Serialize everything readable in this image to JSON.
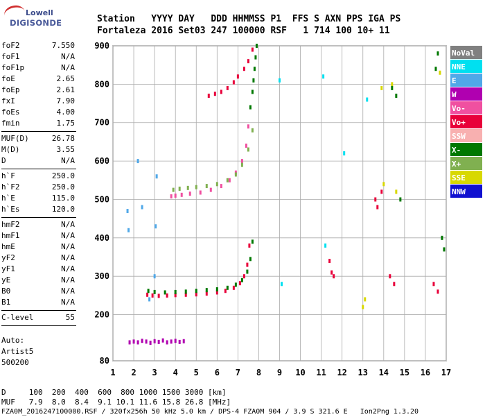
{
  "logo": {
    "brand": "Lowell",
    "product": "DIGISONDE"
  },
  "header": {
    "line1": "Station   YYYY DAY   DDD HHMMSS P1  FFS S AXN PPS IGA PS",
    "line2": "Fortaleza 2016 Set03 247 100000 RSF   1 714 100 10+ 11"
  },
  "params_groups": [
    [
      {
        "name": "foF2",
        "value": "7.550"
      },
      {
        "name": "foF1",
        "value": "N/A"
      },
      {
        "name": "foF1p",
        "value": "N/A"
      },
      {
        "name": "foE",
        "value": "2.65"
      },
      {
        "name": "foEp",
        "value": "2.61"
      },
      {
        "name": "fxI",
        "value": "7.90"
      },
      {
        "name": "foEs",
        "value": "4.00"
      },
      {
        "name": "fmin",
        "value": "1.75"
      }
    ],
    [
      {
        "name": "MUF(D)",
        "value": "26.78"
      },
      {
        "name": "M(D)",
        "value": "3.55"
      },
      {
        "name": "D",
        "value": "N/A"
      }
    ],
    [
      {
        "name": "h`F",
        "value": "250.0"
      },
      {
        "name": "h`F2",
        "value": "250.0"
      },
      {
        "name": "h`E",
        "value": "115.0"
      },
      {
        "name": "h`Es",
        "value": "120.0"
      }
    ],
    [
      {
        "name": "hmF2",
        "value": "N/A"
      },
      {
        "name": "hmF1",
        "value": "N/A"
      },
      {
        "name": "hmE",
        "value": "N/A"
      },
      {
        "name": "yF2",
        "value": "N/A"
      },
      {
        "name": "yF1",
        "value": "N/A"
      },
      {
        "name": "yE",
        "value": "N/A"
      },
      {
        "name": "B0",
        "value": "N/A"
      },
      {
        "name": "B1",
        "value": "N/A"
      }
    ],
    [
      {
        "name": "C-level",
        "value": "55"
      }
    ]
  ],
  "auto_lines": [
    "Auto:",
    "Artist5",
    "500200"
  ],
  "footer": {
    "d_row": "D     100  200  400  600  800 1000 1500 3000 [km]",
    "muf_row": "MUF   7.9  8.0  8.4  9.1 10.1 11.6 15.8 26.8 [MHz]",
    "file_row": "FZA0M_2016247100000.RSF / 320fx256h 50 kHz 5.0 km / DPS-4 FZA0M 904 / 3.9 S 321.6 E   Ion2Png 1.3.20"
  },
  "legend": [
    {
      "label": "NoVal",
      "color": "#808080"
    },
    {
      "label": "NNE",
      "color": "#00e0f0"
    },
    {
      "label": "E",
      "color": "#50a8e8"
    },
    {
      "label": "W",
      "color": "#b000b0"
    },
    {
      "label": "Vo-",
      "color": "#f050a0"
    },
    {
      "label": "Vo+",
      "color": "#e8003a"
    },
    {
      "label": "SSW",
      "color": "#f8b0b0"
    },
    {
      "label": "X-",
      "color": "#007800"
    },
    {
      "label": "X+",
      "color": "#80b050"
    },
    {
      "label": "SSE",
      "color": "#d8d800"
    },
    {
      "label": "NNW",
      "color": "#1010d0"
    }
  ],
  "chart_data": {
    "type": "scatter",
    "title": "",
    "xlabel": "",
    "ylabel": "",
    "xlim": [
      1,
      17
    ],
    "ylim": [
      80,
      900
    ],
    "x_ticks": [
      1,
      2,
      3,
      4,
      5,
      6,
      7,
      8,
      9,
      10,
      11,
      12,
      13,
      14,
      15,
      16,
      17
    ],
    "y_ticks": [
      80,
      200,
      300,
      400,
      500,
      600,
      700,
      800,
      900
    ],
    "grid": true,
    "legend_position": "right",
    "series": [
      {
        "color": "#e8003a",
        "x": [
          2.65,
          2.9,
          3.2,
          3.6,
          4.0,
          4.5,
          5.0,
          5.5,
          6.0,
          6.4,
          6.8,
          7.1,
          7.3,
          7.45,
          7.55
        ],
        "y": [
          252,
          250,
          249,
          250,
          251,
          252,
          253,
          255,
          258,
          262,
          270,
          282,
          300,
          330,
          380
        ]
      },
      {
        "color": "#007800",
        "x": [
          2.7,
          3.0,
          3.5,
          4.0,
          4.5,
          5.0,
          5.5,
          6.0,
          6.5,
          6.9,
          7.2,
          7.45,
          7.6,
          7.7
        ],
        "y": [
          262,
          259,
          258,
          259,
          260,
          262,
          264,
          266,
          270,
          278,
          290,
          312,
          345,
          390
        ]
      },
      {
        "color": "#f050a0",
        "x": [
          3.8,
          4.0,
          4.3,
          4.7,
          5.2,
          5.7,
          6.2,
          6.6,
          6.9,
          7.2,
          7.4,
          7.5
        ],
        "y": [
          508,
          510,
          512,
          515,
          518,
          525,
          535,
          550,
          570,
          600,
          640,
          690
        ]
      },
      {
        "color": "#80b050",
        "x": [
          3.9,
          4.2,
          4.6,
          5.0,
          5.5,
          6.0,
          6.5,
          6.9,
          7.2,
          7.5,
          7.7
        ],
        "y": [
          525,
          528,
          530,
          532,
          535,
          540,
          550,
          565,
          590,
          630,
          680
        ]
      },
      {
        "color": "#e8003a",
        "x": [
          5.6,
          5.9,
          6.2,
          6.5,
          6.8,
          7.0,
          7.3,
          7.5,
          7.7
        ],
        "y": [
          770,
          775,
          780,
          790,
          805,
          820,
          840,
          860,
          890
        ]
      },
      {
        "color": "#007800",
        "x": [
          7.6,
          7.7,
          7.75,
          7.8,
          7.85,
          7.9
        ],
        "y": [
          740,
          780,
          810,
          840,
          870,
          900
        ]
      },
      {
        "color": "#b000b0",
        "x": [
          1.8,
          2.0,
          2.2,
          2.4,
          2.6,
          2.8,
          3.0,
          3.2,
          3.4,
          3.6,
          3.8,
          4.0,
          4.2,
          4.4
        ],
        "y": [
          128,
          130,
          128,
          132,
          130,
          127,
          131,
          129,
          133,
          128,
          130,
          132,
          129,
          131
        ]
      },
      {
        "color": "#50a8e8",
        "x": [
          1.7,
          1.75,
          2.2,
          2.4,
          2.75,
          3.0,
          3.05,
          3.1
        ],
        "y": [
          470,
          420,
          600,
          480,
          240,
          300,
          430,
          560
        ]
      },
      {
        "color": "#e8003a",
        "x": [
          11.4,
          11.5,
          11.6,
          13.6,
          13.7,
          13.9,
          14.3,
          14.5,
          16.4,
          16.6
        ],
        "y": [
          340,
          310,
          300,
          500,
          480,
          520,
          300,
          280,
          280,
          260
        ]
      },
      {
        "color": "#d8d800",
        "x": [
          13.0,
          13.1,
          13.9,
          14.0,
          14.4,
          14.6,
          16.7
        ],
        "y": [
          220,
          240,
          790,
          540,
          800,
          520,
          830
        ]
      },
      {
        "color": "#007800",
        "x": [
          14.4,
          14.6,
          14.8,
          16.5,
          16.6,
          16.8,
          16.9
        ],
        "y": [
          790,
          770,
          500,
          840,
          880,
          400,
          370
        ]
      },
      {
        "color": "#00e0f0",
        "x": [
          9.0,
          9.1,
          11.1,
          11.2,
          12.1,
          13.2
        ],
        "y": [
          810,
          280,
          820,
          380,
          620,
          760
        ]
      }
    ]
  }
}
